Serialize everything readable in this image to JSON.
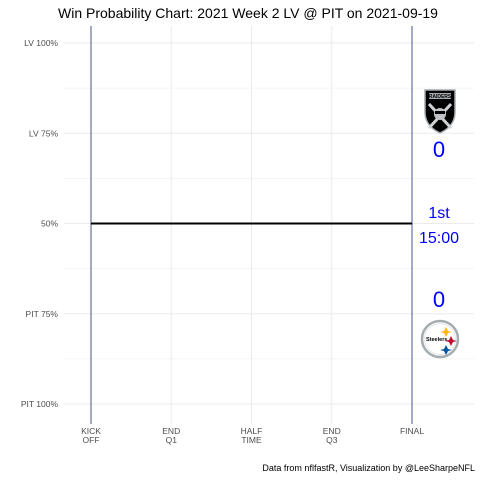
{
  "chart_data": {
    "type": "line",
    "title": "Win Probability Chart: 2021 Week 2 LV @ PIT on 2021-09-19",
    "caption": "Data from nflfastR, Visualization by @LeeSharpeNFL",
    "y_ticks": [
      {
        "value": 1.0,
        "label": "LV 100%"
      },
      {
        "value": 0.75,
        "label": "LV 75%"
      },
      {
        "value": 0.5,
        "label": "50%"
      },
      {
        "value": 0.25,
        "label": "PIT 75%"
      },
      {
        "value": 0.0,
        "label": "PIT 100%"
      }
    ],
    "x_ticks": [
      {
        "value": 0,
        "label": [
          "KICK",
          "OFF"
        ]
      },
      {
        "value": 15,
        "label": [
          "END",
          "Q1"
        ]
      },
      {
        "value": 30,
        "label": [
          "HALF",
          "TIME"
        ]
      },
      {
        "value": 45,
        "label": [
          "END",
          "Q3"
        ]
      },
      {
        "value": 60,
        "label": [
          "FINAL"
        ]
      }
    ],
    "xlim": [
      0,
      60
    ],
    "ylim": [
      0,
      1
    ],
    "series": [
      {
        "values": [
          {
            "x": 0,
            "y": 0.5
          },
          {
            "x": 60,
            "y": 0.5
          }
        ]
      }
    ],
    "grid": true
  },
  "game_state": {
    "away_team": "LV",
    "home_team": "PIT",
    "away_score": "0",
    "home_score": "0",
    "quarter": "1st",
    "clock": "15:00"
  },
  "colors": {
    "wp_line": "#000000",
    "vline": "#1f2a6b",
    "grid": "#ebebeb",
    "score_text": "#0000ff"
  },
  "icons": {
    "away_logo": "raiders-logo-icon",
    "home_logo": "steelers-logo-icon"
  }
}
